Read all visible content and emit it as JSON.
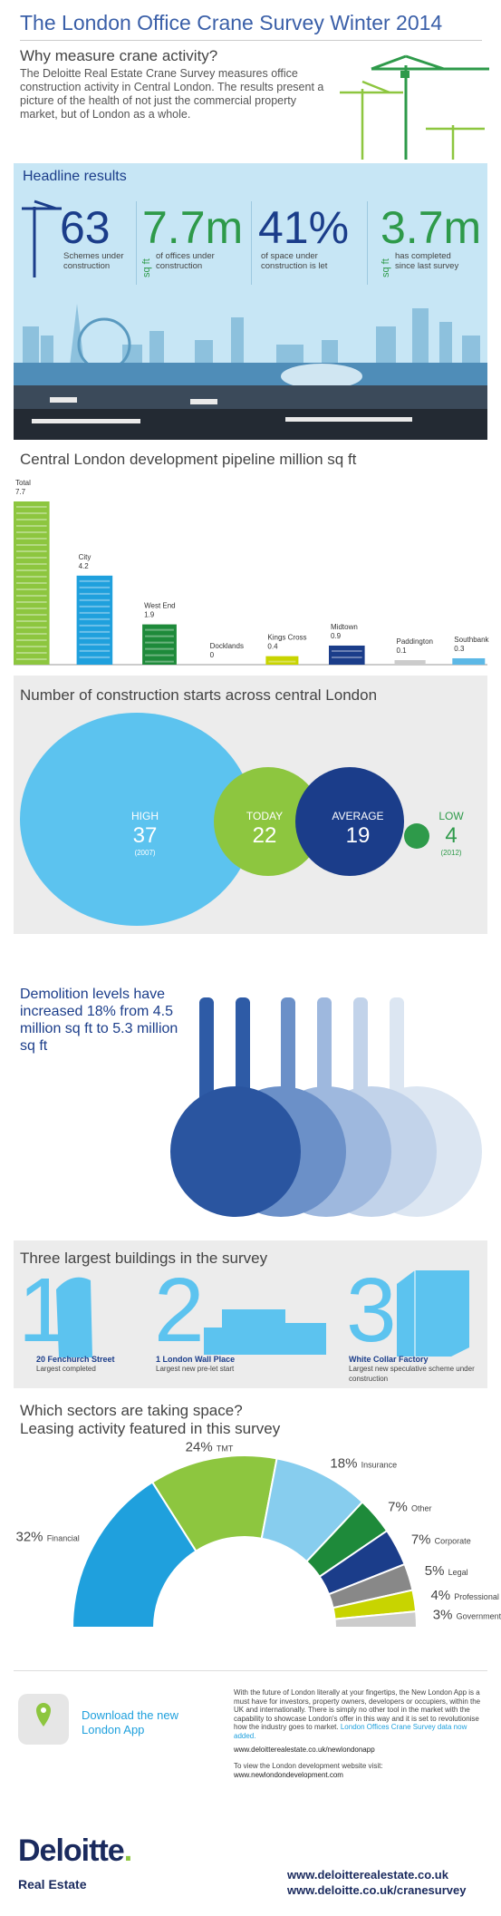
{
  "header": {
    "title": "The London Office Crane Survey Winter 2014"
  },
  "intro": {
    "heading": "Why measure crane activity?",
    "body": "The Deloitte Real Estate Crane Survey measures office construction activity in Central London. The results present a picture of the health of not just the commercial property market, but of London as a whole."
  },
  "headline": {
    "heading": "Headline results",
    "stats": [
      {
        "value": "63",
        "caption": "Schemes under construction"
      },
      {
        "value": "7.7m",
        "unit": "sq ft",
        "caption": "of offices under construction"
      },
      {
        "value": "41%",
        "caption": "of space under construction is let"
      },
      {
        "value": "3.7m",
        "unit": "sq ft",
        "caption": "has completed since last survey"
      }
    ]
  },
  "pipeline": {
    "heading": "Central London development pipeline million sq ft",
    "chart_data": {
      "type": "bar",
      "categories": [
        "Total",
        "City",
        "West End",
        "Docklands",
        "Kings Cross",
        "Midtown",
        "Paddington",
        "Southbank"
      ],
      "values": [
        7.7,
        4.2,
        1.9,
        0,
        0.4,
        0.9,
        0.1,
        0.3
      ],
      "colors": [
        "#8dc63f",
        "#1fa0dd",
        "#1e8a3a",
        "#cccccc",
        "#c8d400",
        "#1b3d8a",
        "#cccccc",
        "#5cb8e6"
      ]
    }
  },
  "starts": {
    "heading": "Number of construction starts across central London",
    "items": [
      {
        "label": "HIGH",
        "value": "37",
        "note": "(2007)"
      },
      {
        "label": "TODAY",
        "value": "22",
        "note": ""
      },
      {
        "label": "AVERAGE",
        "value": "19",
        "note": ""
      },
      {
        "label": "LOW",
        "value": "4",
        "note": "(2012)"
      }
    ]
  },
  "demolition": {
    "text": "Demolition levels have increased 18% from 4.5 million sq ft to 5.3 million sq ft"
  },
  "largest": {
    "heading": "Three largest buildings in the survey",
    "items": [
      {
        "rank": "1",
        "name": "20 Fenchurch Street",
        "note": "Largest completed"
      },
      {
        "rank": "2",
        "name": "1 London Wall Place",
        "note": "Largest new pre-let start"
      },
      {
        "rank": "3",
        "name": "White Collar Factory",
        "note": "Largest new speculative scheme under construction"
      }
    ]
  },
  "sectors": {
    "heading_line1": "Which sectors are taking space?",
    "heading_line2": "Leasing activity featured in this survey",
    "chart_data": {
      "type": "pie",
      "categories": [
        "Financial",
        "TMT",
        "Insurance",
        "Other",
        "Corporate",
        "Legal",
        "Professional",
        "Government"
      ],
      "values": [
        32,
        24,
        18,
        7,
        7,
        5,
        4,
        3
      ],
      "labels": [
        "32%",
        "24%",
        "18%",
        "7%",
        "7%",
        "5%",
        "4%",
        "3%"
      ],
      "colors": [
        "#1fa0dd",
        "#8dc63f",
        "#87cdee",
        "#1e8a3a",
        "#1b3d8a",
        "#888888",
        "#c8d400",
        "#cccccc"
      ]
    }
  },
  "app": {
    "download": "Download the new London App",
    "body": "With the future of London literally at your fingertips, the New London App is a must have for investors, property owners, developers or occupiers, within the UK and internationally. There is simply no other tool in the market with the capability to showcase London's offer in this way and it is set to revolutionise how the industry goes to market.",
    "body_highlight": "London Offices Crane Survey data now added.",
    "link1": "www.deloitterealestate.co.uk/newlondonapp",
    "visit": "To view the London development website visit:",
    "link2": "www.newlondondevelopment.com"
  },
  "footer": {
    "brand": "Deloitte",
    "sub": "Real Estate",
    "url1": "www.deloitterealestate.co.uk",
    "url2": "www.deloitte.co.uk/cranesurvey"
  }
}
